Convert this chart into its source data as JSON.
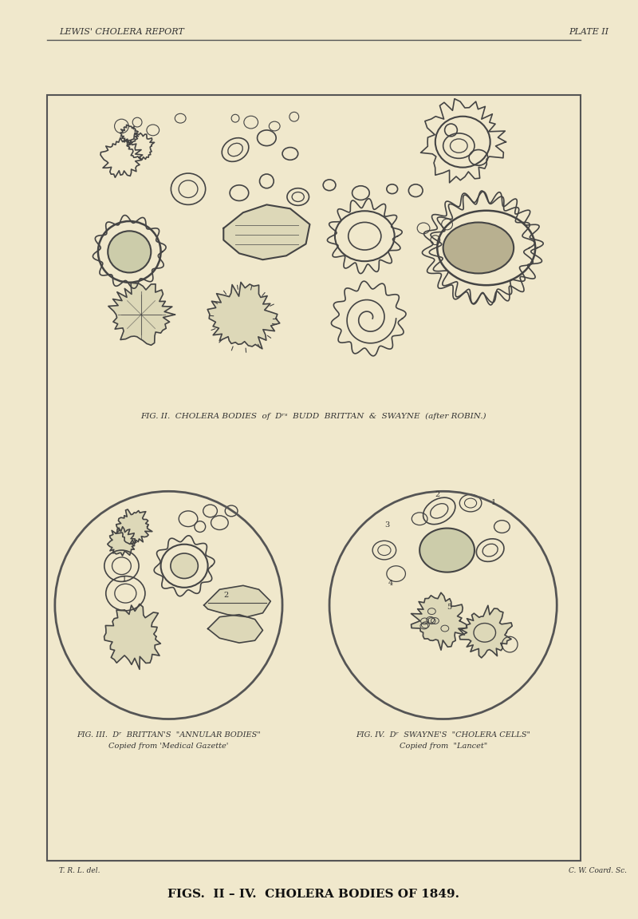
{
  "background_color": "#f0e8cc",
  "page_bg": "#f0e8cc",
  "border_color": "#555555",
  "text_color": "#333333",
  "header_left": "LEWIS' CHOLERA REPORT",
  "header_right": "PLATE II",
  "fig2_caption": "FIG. II.  CHOLERA BODIES  of  Dʳˢ  BUDD  BRITTAN  &  SWAYNE  (after ROBIN.)",
  "fig3_caption_line1": "FIG. III.  Dʳ  BRITTAN'S  \"ANNULAR BODIES\"",
  "fig3_caption_line2": "Copied from 'Medical Gazette'",
  "fig4_caption_line1": "FIG. IV.  Dʳ  SWAYNE'S  \"CHOLERA CELLS\"",
  "fig4_caption_line2": "Copied from  \"Lancet\"",
  "footer_left": "T. R. L. del.",
  "footer_right": "C. W. Coard. Sc.",
  "bottom_title": "FIGS.  II – IV.  CHOLERA BODIES OF 1849.",
  "line_color": "#444444",
  "fill_color": "#e8dfc0",
  "circle_edge": "#555555"
}
